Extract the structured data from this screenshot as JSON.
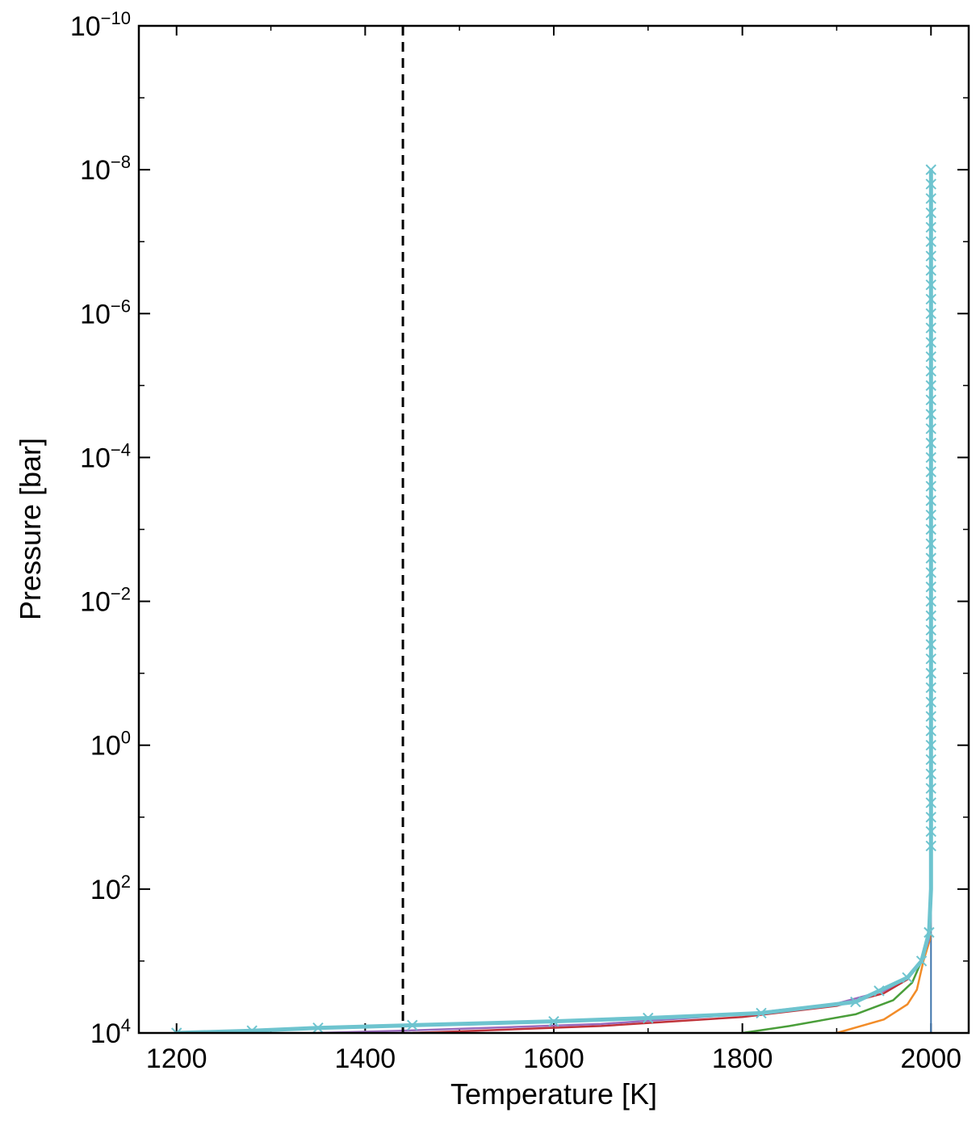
{
  "chart_data": {
    "type": "line",
    "title": "",
    "xlabel": "Temperature [K]",
    "ylabel": "Pressure [bar]",
    "xlim": [
      1160,
      2040
    ],
    "ylim_log10": [
      4,
      -10
    ],
    "y_scale": "log",
    "y_inverted": true,
    "grid": false,
    "x_ticks": [
      1200,
      1400,
      1600,
      1800,
      2000
    ],
    "x_tick_labels": [
      "1200",
      "1400",
      "1600",
      "1800",
      "2000"
    ],
    "y_ticks": [
      {
        "base": "10",
        "exp": "4",
        "value": 10000
      },
      {
        "base": "10",
        "exp": "2",
        "value": 100
      },
      {
        "base": "10",
        "exp": "0",
        "value": 1
      },
      {
        "base": "10",
        "exp": "−2",
        "value": 0.01
      },
      {
        "base": "10",
        "exp": "−4",
        "value": 0.0001
      },
      {
        "base": "10",
        "exp": "−6",
        "value": 1e-06
      },
      {
        "base": "10",
        "exp": "−8",
        "value": 1e-08
      },
      {
        "base": "10",
        "exp": "−10",
        "value": 1e-10
      }
    ],
    "vertical_line": {
      "x": 1440,
      "style": "dashed",
      "color": "#000000"
    },
    "series": [
      {
        "color": "#3f74ac",
        "width": 2,
        "points": [
          [
            2000,
            1e-08
          ],
          [
            2000,
            100.0
          ],
          [
            2000,
            3000
          ],
          [
            2000,
            10000
          ]
        ]
      },
      {
        "color": "#f28c28",
        "width": 2.5,
        "points": [
          [
            2000,
            1e-08
          ],
          [
            2000,
            100.0
          ],
          [
            1999,
            500
          ],
          [
            1992,
            1000
          ],
          [
            1985,
            2500
          ],
          [
            1975,
            4000
          ],
          [
            1950,
            6500
          ],
          [
            1900,
            10000
          ]
        ]
      },
      {
        "color": "#4a9e3a",
        "width": 2.5,
        "points": [
          [
            2000,
            1e-08
          ],
          [
            2000,
            100.0
          ],
          [
            1998,
            500
          ],
          [
            1990,
            1000
          ],
          [
            1980,
            2000
          ],
          [
            1960,
            3500
          ],
          [
            1920,
            5500
          ],
          [
            1850,
            8000
          ],
          [
            1800,
            10000
          ]
        ]
      },
      {
        "color": "#c0333a",
        "width": 2.5,
        "points": [
          [
            2000,
            1e-08
          ],
          [
            2000,
            100.0
          ],
          [
            1998,
            500
          ],
          [
            1990,
            1000
          ],
          [
            1975,
            1800
          ],
          [
            1950,
            2800
          ],
          [
            1900,
            4200
          ],
          [
            1800,
            6000
          ],
          [
            1650,
            8000
          ],
          [
            1500,
            9500
          ],
          [
            1450,
            10000
          ]
        ]
      },
      {
        "color": "#9a6bbd",
        "width": 2.5,
        "points": [
          [
            2000,
            1e-08
          ],
          [
            2000,
            100.0
          ],
          [
            1998,
            500
          ],
          [
            1990,
            1000
          ],
          [
            1975,
            1700
          ],
          [
            1950,
            2600
          ],
          [
            1900,
            3900
          ],
          [
            1800,
            5500
          ],
          [
            1650,
            7500
          ],
          [
            1450,
            9200
          ],
          [
            1350,
            10000
          ]
        ]
      },
      {
        "color": "#6ec4cf",
        "width": 5,
        "markers": true,
        "points": [
          [
            2000,
            1e-08
          ],
          [
            2000,
            100.0
          ],
          [
            1998,
            400
          ],
          [
            1990,
            1000
          ],
          [
            1975,
            1700
          ],
          [
            1945,
            2600
          ],
          [
            1920,
            3700
          ],
          [
            1820,
            5300
          ],
          [
            1700,
            6200
          ],
          [
            1600,
            6900
          ],
          [
            1450,
            7800
          ],
          [
            1350,
            8500
          ],
          [
            1280,
            9300
          ],
          [
            1200,
            10000
          ]
        ]
      }
    ]
  }
}
